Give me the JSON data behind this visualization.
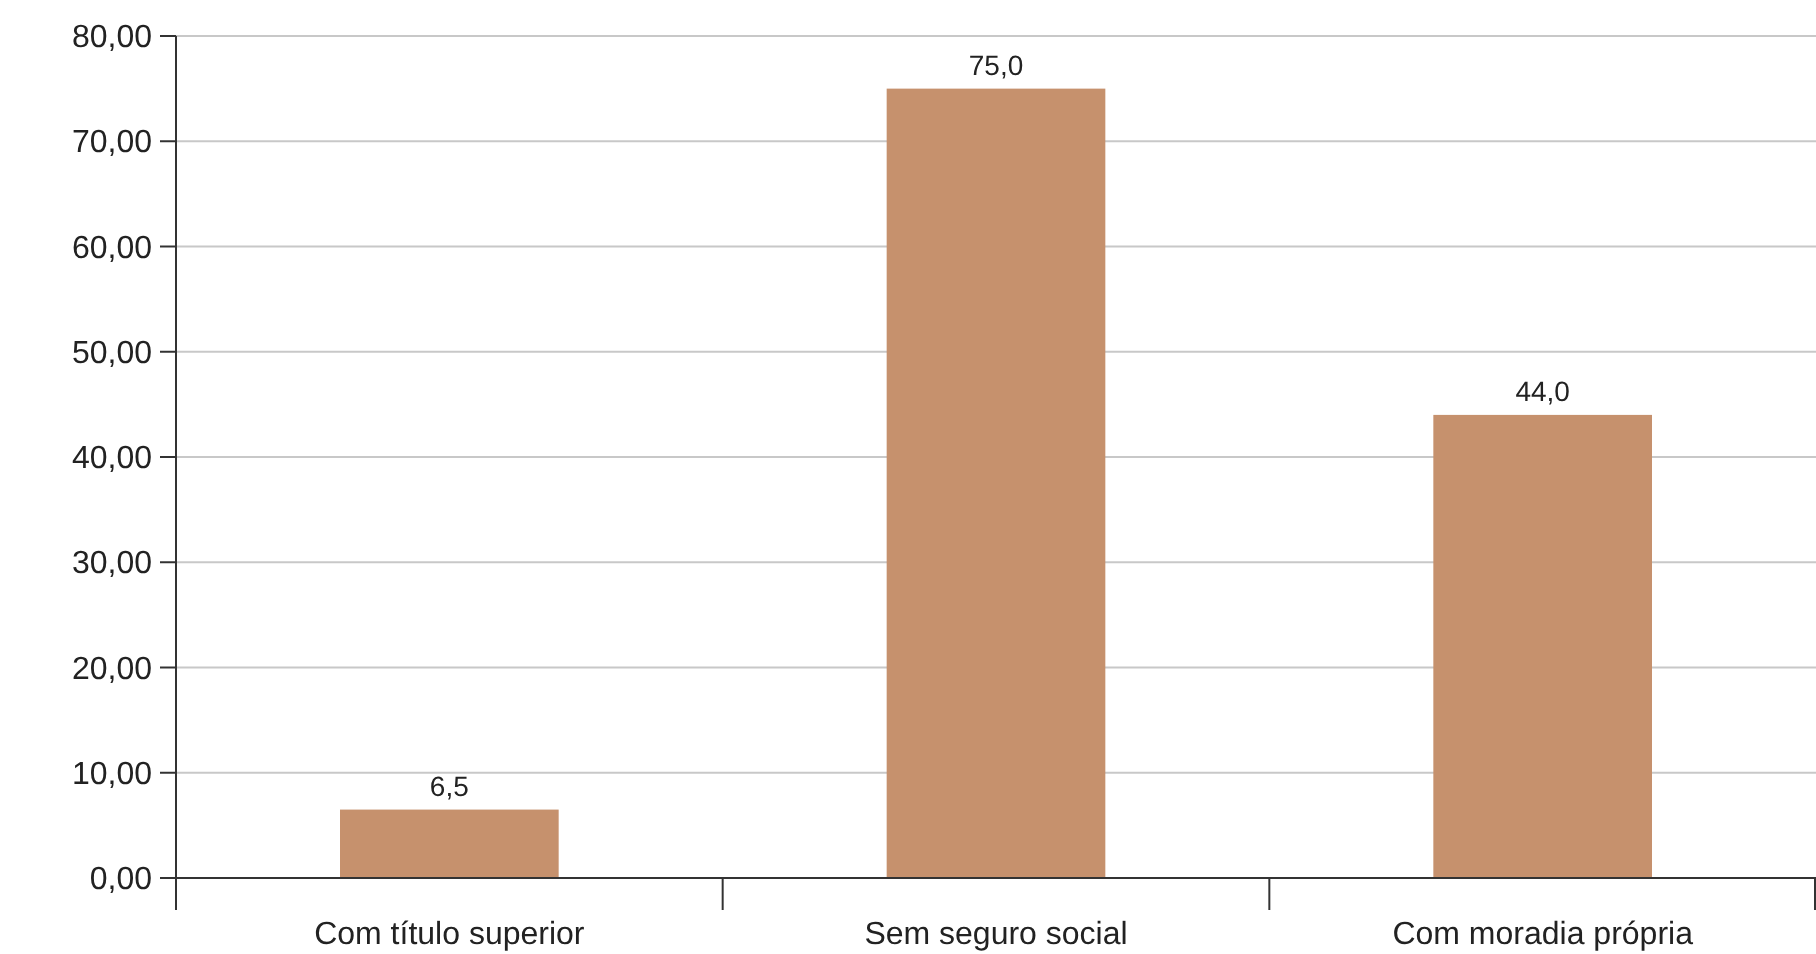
{
  "chart_data": {
    "type": "bar",
    "categories": [
      "Com título superior",
      "Sem seguro social",
      "Com moradia própria"
    ],
    "values": [
      6.5,
      75.0,
      44.0
    ],
    "color": "#c6916d",
    "value_labels": [
      "6,5",
      "75,0",
      "44,0"
    ],
    "ylim": [
      0,
      80
    ],
    "yticks": [
      {
        "value": 0,
        "label": "0,00"
      },
      {
        "value": 10,
        "label": "10,00"
      },
      {
        "value": 20,
        "label": "20,00"
      },
      {
        "value": 30,
        "label": "30,00"
      },
      {
        "value": 40,
        "label": "40,00"
      },
      {
        "value": 50,
        "label": "50,00"
      },
      {
        "value": 60,
        "label": "60,00"
      },
      {
        "value": 70,
        "label": "70,00"
      },
      {
        "value": 80,
        "label": "80,00"
      }
    ],
    "grid": true
  }
}
